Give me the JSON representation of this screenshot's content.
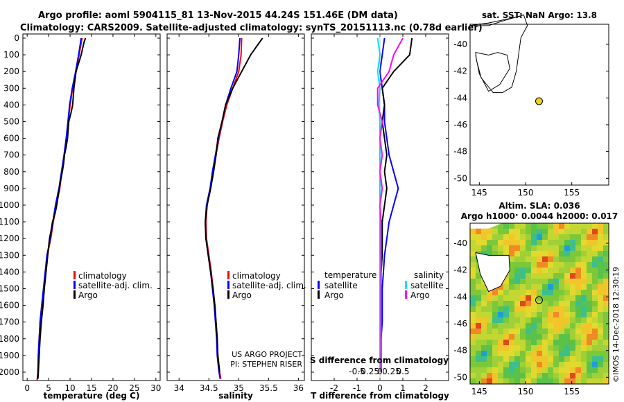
{
  "titles": {
    "line1": "Argo profile: aoml 5904115_81 13-Nov-2015 44.24S 151.46E (DM data)",
    "line2": "Climatology: CARS2009. Satellite-adjusted climatology: synTS_20151113.nc (0.78d earlier)"
  },
  "colors": {
    "climatology": "#ff0000",
    "satellite": "#0000ff",
    "argo": "#000000",
    "s_satellite": "#00e5ee",
    "s_argo": "#ff00ff"
  },
  "y_ticks": [
    "0",
    "100",
    "200",
    "300",
    "400",
    "500",
    "600",
    "700",
    "800",
    "900",
    "1000",
    "1100",
    "1200",
    "1300",
    "1400",
    "1500",
    "1600",
    "1700",
    "1800",
    "1900",
    "2000"
  ],
  "legend_tc": {
    "clim": "climatology",
    "sat": "satellite-adj. clim.",
    "argo": "Argo"
  },
  "legend_diff": {
    "temp_head": "temperature",
    "sal_head": "salinity",
    "sat": "satellite",
    "argo": "Argo"
  },
  "credit": {
    "line1": "US ARGO PROJECT",
    "line2": "PI: STEPHEN RISER"
  },
  "map_top": {
    "title": "sat. SST: NaN Argo: 13.8"
  },
  "map_bottom": {
    "title1": "Altim. SLA: 0.036",
    "title2": "Argo h1000: 0.0044 h2000: 0.017"
  },
  "watermark": "©IMOS 14-Dec-2018 12:30:19",
  "chart_data": [
    {
      "type": "line",
      "name": "temperature",
      "xlabel": "temperature (deg C)",
      "ylabel": "",
      "xlim": [
        -1,
        31
      ],
      "ylim": [
        2050,
        0
      ],
      "x_ticks": [
        0,
        5,
        10,
        15,
        20,
        25,
        30
      ],
      "series": [
        {
          "name": "climatology",
          "color": "#ff0000",
          "x": [
            12.8,
            12.1,
            11.4,
            10.6,
            10.0,
            9.6,
            9.1,
            8.6,
            8.1,
            7.6,
            6.8,
            6.1,
            5.5,
            4.7,
            4.3,
            3.9,
            3.4,
            3.0,
            2.8,
            2.6,
            2.5,
            2.4,
            2.3
          ],
          "y": [
            0,
            100,
            200,
            300,
            400,
            500,
            600,
            700,
            800,
            900,
            1000,
            1100,
            1200,
            1300,
            1400,
            1500,
            1600,
            1700,
            1800,
            1900,
            2000,
            2030,
            2050
          ]
        },
        {
          "name": "satellite-adj. clim.",
          "color": "#0000ff",
          "x": [
            12.6,
            12.0,
            11.3,
            10.5,
            9.9,
            9.5,
            9.1,
            8.6,
            8.0,
            7.4,
            6.6,
            6.0,
            5.4,
            4.6,
            4.2,
            3.8,
            3.4,
            3.0,
            2.8,
            2.6,
            2.5,
            2.4
          ],
          "y": [
            0,
            100,
            200,
            300,
            400,
            500,
            600,
            700,
            800,
            900,
            1000,
            1100,
            1200,
            1300,
            1400,
            1500,
            1600,
            1700,
            1800,
            1900,
            2000,
            2040
          ]
        },
        {
          "name": "Argo",
          "color": "#000000",
          "x": [
            13.6,
            13.2,
            12.6,
            11.4,
            10.9,
            10.6,
            10.2,
            9.7,
            9.4,
            9.1,
            8.7,
            8.5,
            8.2,
            7.8,
            7.5,
            7.2,
            6.9,
            6.5,
            5.9,
            5.6,
            5.2,
            4.8,
            4.4,
            4.0,
            3.7,
            3.3,
            3.0,
            2.8,
            2.6,
            2.5
          ],
          "y": [
            0,
            30,
            100,
            200,
            300,
            400,
            450,
            500,
            600,
            650,
            700,
            750,
            800,
            850,
            900,
            950,
            1000,
            1050,
            1100,
            1150,
            1200,
            1300,
            1400,
            1500,
            1600,
            1700,
            1800,
            1900,
            2000,
            2040
          ]
        }
      ]
    },
    {
      "type": "line",
      "name": "salinity",
      "xlabel": "salinity",
      "ylabel": "",
      "xlim": [
        33.8,
        36.1
      ],
      "ylim": [
        2050,
        0
      ],
      "x_ticks": [
        34,
        34.5,
        35,
        35.5,
        36
      ],
      "series": [
        {
          "name": "climatology",
          "color": "#ff0000",
          "x": [
            35.05,
            35.04,
            35.0,
            34.9,
            34.8,
            34.73,
            34.67,
            34.62,
            34.57,
            34.53,
            34.47,
            34.45,
            34.46,
            34.5,
            34.54,
            34.57,
            34.6,
            34.62,
            34.64,
            34.65,
            34.68,
            34.7
          ],
          "y": [
            0,
            100,
            200,
            300,
            400,
            500,
            600,
            700,
            800,
            900,
            1000,
            1100,
            1200,
            1300,
            1400,
            1500,
            1600,
            1700,
            1800,
            1900,
            2000,
            2040
          ]
        },
        {
          "name": "satellite-adj. clim.",
          "color": "#0000ff",
          "x": [
            35.02,
            35.0,
            34.97,
            34.87,
            34.78,
            34.72,
            34.66,
            34.61,
            34.56,
            34.52,
            34.46,
            34.44,
            34.45,
            34.49,
            34.53,
            34.56,
            34.59,
            34.61,
            34.63,
            34.64,
            34.67,
            34.69
          ],
          "y": [
            0,
            100,
            200,
            300,
            400,
            500,
            600,
            700,
            800,
            900,
            1000,
            1100,
            1200,
            1300,
            1400,
            1500,
            1600,
            1700,
            1800,
            1900,
            2000,
            2040
          ]
        },
        {
          "name": "Argo",
          "color": "#000000",
          "x": [
            35.4,
            35.3,
            35.2,
            35.05,
            34.9,
            34.78,
            34.72,
            34.65,
            34.62,
            34.58,
            34.53,
            34.47,
            34.44,
            34.45,
            34.49,
            34.53,
            34.57,
            34.6,
            34.62,
            34.64,
            34.65,
            34.68
          ],
          "y": [
            0,
            50,
            100,
            200,
            300,
            400,
            500,
            600,
            700,
            800,
            900,
            1000,
            1100,
            1200,
            1300,
            1400,
            1500,
            1600,
            1700,
            1800,
            1900,
            2000
          ]
        }
      ]
    },
    {
      "type": "line",
      "name": "difference",
      "xlabel": "T difference from climatology",
      "ylabel": "",
      "xlabel2": "S difference from climatology",
      "xlim": [
        -3,
        3
      ],
      "ylim": [
        2050,
        0
      ],
      "x_ticks": [
        "-2",
        "-1",
        "0",
        "1",
        "2"
      ],
      "x_ticks2": [
        "-0.5",
        "-0.25",
        "0",
        "0.25",
        "0.5"
      ],
      "series": [
        {
          "name": "temperature satellite",
          "color": "#0000ff",
          "x": [
            0.2,
            0.1,
            0.0,
            0.1,
            0.2,
            0.2,
            0.3,
            0.4,
            0.6,
            0.8,
            0.6,
            0.4,
            0.3,
            0.2,
            0.15,
            0.1,
            0.1,
            0.1,
            0.05,
            0.05,
            0.05
          ],
          "y": [
            0,
            100,
            200,
            300,
            400,
            500,
            600,
            700,
            800,
            900,
            1000,
            1100,
            1200,
            1300,
            1400,
            1500,
            1600,
            1700,
            1800,
            1900,
            2000
          ]
        },
        {
          "name": "temperature Argo",
          "color": "#000000",
          "x": [
            1.4,
            1.3,
            0.6,
            0.1,
            0.2,
            0.1,
            0.2,
            0.3,
            0.2,
            0.3,
            0.2,
            0.1,
            0.1,
            0.1,
            0.05,
            0.05,
            0.05,
            0.05,
            0.05,
            0.05,
            0.05
          ],
          "y": [
            0,
            100,
            200,
            300,
            400,
            500,
            600,
            700,
            800,
            900,
            1000,
            1100,
            1200,
            1300,
            1400,
            1500,
            1600,
            1700,
            1800,
            1900,
            2000
          ]
        },
        {
          "name": "salinity satellite",
          "color": "#00e5ee",
          "x": [
            -0.1,
            0.0,
            -0.1,
            0.0,
            -0.05,
            0.0,
            0.0,
            0.0,
            0.0,
            0.0,
            0.0,
            0.0,
            0.0,
            0.0,
            0.0,
            0.0,
            0.0,
            0.0,
            0.0,
            0.0,
            0.0
          ],
          "y": [
            0,
            100,
            200,
            300,
            400,
            500,
            600,
            700,
            800,
            900,
            1000,
            1100,
            1200,
            1300,
            1400,
            1500,
            1600,
            1700,
            1800,
            1900,
            2000
          ]
        },
        {
          "name": "salinity Argo",
          "color": "#ff00ff",
          "x": [
            1.0,
            0.6,
            0.4,
            -0.1,
            -0.1,
            0.1,
            0.0,
            0.1,
            0.0,
            0.1,
            0.0,
            0.05,
            0.05,
            0.05,
            0.05,
            0.05,
            0.05,
            0.05,
            0.05,
            0.05,
            0.05
          ],
          "y": [
            0,
            100,
            200,
            300,
            400,
            500,
            600,
            700,
            800,
            900,
            1000,
            1100,
            1200,
            1300,
            1400,
            1500,
            1600,
            1700,
            1800,
            1900,
            2000
          ]
        }
      ]
    },
    {
      "type": "scatter",
      "name": "sst map",
      "xlim": [
        144,
        159
      ],
      "ylim": [
        -50.5,
        -38.5
      ],
      "x_ticks": [
        145,
        150,
        155
      ],
      "y_ticks": [
        -40,
        -42,
        -44,
        -46,
        -48,
        -50
      ],
      "points": [
        {
          "lon": 151.46,
          "lat": -44.24
        }
      ]
    },
    {
      "type": "heatmap",
      "name": "sla map",
      "xlim": [
        144,
        159
      ],
      "ylim": [
        -50.5,
        -38.5
      ],
      "x_ticks": [
        145,
        150,
        155
      ],
      "y_ticks": [
        -40,
        -42,
        -44,
        -46,
        -48,
        -50
      ],
      "points": [
        {
          "lon": 151.46,
          "lat": -44.24
        }
      ]
    }
  ]
}
